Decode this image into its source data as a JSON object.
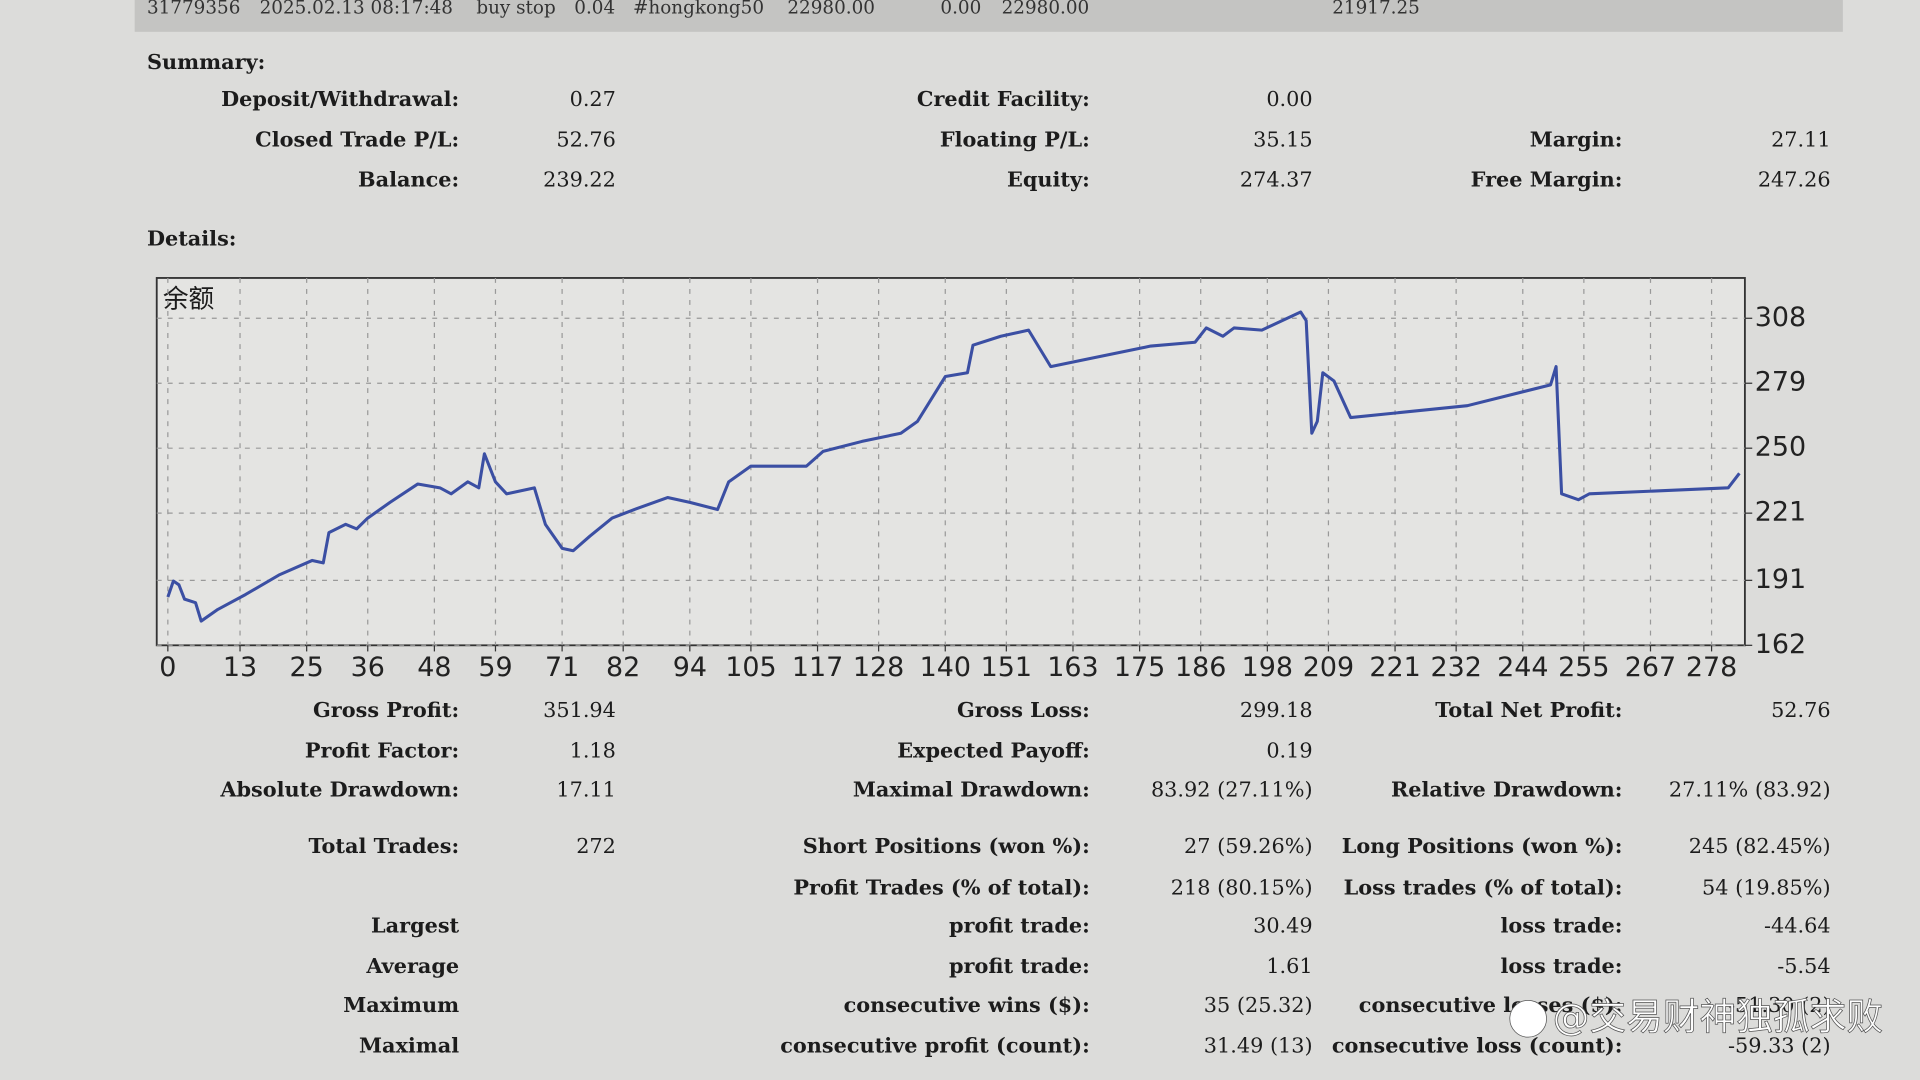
{
  "top_row": [
    "31779356",
    "2025.02.13 08:17:48",
    "buy stop",
    "0.04",
    "#hongkong50",
    "22980.00",
    "0.00",
    "22980.00",
    "21917.25"
  ],
  "summary": {
    "title": "Summary:",
    "rows": [
      {
        "left": {
          "label": "Deposit/Withdrawal:",
          "value": "0.27"
        },
        "middle": {
          "label": "Credit Facility:",
          "value": "0.00"
        }
      },
      {
        "left": {
          "label": "Closed Trade P/L:",
          "value": "52.76"
        },
        "middle": {
          "label": "Floating P/L:",
          "value": "35.15"
        },
        "right": {
          "label": "Margin:",
          "value": "27.11"
        }
      },
      {
        "left": {
          "label": "Balance:",
          "value": "239.22"
        },
        "middle": {
          "label": "Equity:",
          "value": "274.37"
        },
        "right": {
          "label": "Free Margin:",
          "value": "247.26"
        }
      }
    ]
  },
  "details_title": "Details:",
  "chart_data": {
    "type": "line",
    "title": "余额",
    "x": [
      0,
      1,
      2,
      3,
      5,
      6,
      9,
      14,
      20,
      26,
      28,
      29,
      32,
      34,
      36,
      40,
      45,
      49,
      51,
      54,
      56,
      57,
      59,
      61,
      66,
      68,
      71,
      73,
      76,
      80,
      84,
      90,
      94,
      99,
      101,
      105,
      115,
      118,
      125,
      132,
      135,
      140,
      144,
      145,
      150,
      155,
      159,
      164,
      177,
      185,
      187,
      190,
      192,
      197,
      204,
      205,
      206,
      207,
      208,
      210,
      213,
      234,
      249,
      250,
      251,
      254,
      256,
      281,
      283
    ],
    "series": [
      {
        "color": "#3b4fa3",
        "values": [
          183.6,
          190.7,
          189,
          182.6,
          181,
          172.8,
          178,
          184.7,
          193.4,
          199.9,
          198.8,
          212.3,
          216,
          214,
          218.8,
          225.8,
          234,
          232.3,
          229.6,
          235,
          232.3,
          247.5,
          235,
          229.6,
          232.3,
          216,
          205.3,
          204.2,
          210.7,
          218.8,
          222.6,
          228,
          225.8,
          222.6,
          235,
          242,
          242,
          248.6,
          253,
          256.7,
          262,
          282,
          283.7,
          296,
          300,
          302.7,
          286.4,
          289,
          295.6,
          297.3,
          303.7,
          300,
          303.7,
          302.7,
          310.8,
          307,
          256.7,
          262,
          283.7,
          280,
          263.7,
          269,
          278.3,
          286.4,
          229.6,
          227,
          229.6,
          232.3,
          238.8
        ]
      }
    ],
    "xlim": [
      -2,
      284
    ],
    "ylim": [
      162,
      326
    ],
    "xticks": [
      0,
      13,
      25,
      36,
      48,
      59,
      71,
      82,
      94,
      105,
      117,
      128,
      140,
      151,
      163,
      175,
      186,
      198,
      209,
      221,
      232,
      244,
      255,
      267,
      278
    ],
    "yticks": [
      162,
      191,
      221,
      250,
      279,
      308
    ],
    "grid": true
  },
  "stats": [
    {
      "left": {
        "label": "Gross Profit:",
        "value": "351.94"
      },
      "middle": {
        "label": "Gross Loss:",
        "value": "299.18"
      },
      "right": {
        "label": "Total Net Profit:",
        "value": "52.76"
      }
    },
    {
      "left": {
        "label": "Profit Factor:",
        "value": "1.18"
      },
      "middle": {
        "label": "Expected Payoff:",
        "value": "0.19"
      }
    },
    {
      "left": {
        "label": "Absolute Drawdown:",
        "value": "17.11"
      },
      "middle": {
        "label": "Maximal Drawdown:",
        "value": "83.92 (27.11%)"
      },
      "right": {
        "label": "Relative Drawdown:",
        "value": "27.11% (83.92)"
      }
    },
    {
      "left": {
        "label": "Total Trades:",
        "value": "272"
      },
      "middle": {
        "label": "Short Positions (won %):",
        "value": "27 (59.26%)"
      },
      "right": {
        "label": "Long Positions (won %):",
        "value": "245 (82.45%)"
      }
    },
    {
      "middle": {
        "label": "Profit Trades (% of total):",
        "value": "218 (80.15%)"
      },
      "right": {
        "label": "Loss trades (% of total):",
        "value": "54 (19.85%)"
      }
    },
    {
      "left": {
        "label": "Largest"
      },
      "middle": {
        "label": "profit trade:",
        "value": "30.49"
      },
      "right": {
        "label": "loss trade:",
        "value": "-44.64"
      }
    },
    {
      "left": {
        "label": "Average"
      },
      "middle": {
        "label": "profit trade:",
        "value": "1.61"
      },
      "right": {
        "label": "loss trade:",
        "value": "-5.54"
      }
    },
    {
      "left": {
        "label": "Maximum"
      },
      "middle": {
        "label": "consecutive wins ($):",
        "value": "35 (25.32)"
      },
      "right": {
        "label": "consecutive losses ($):",
        "value": "-51.30 (2)"
      }
    },
    {
      "left": {
        "label": "Maximal"
      },
      "middle": {
        "label": "consecutive profit (count):",
        "value": "31.49 (13)"
      },
      "right": {
        "label": "consecutive loss (count):",
        "value": "-59.33 (2)"
      }
    }
  ],
  "watermark": "@交易财神独孤求败"
}
